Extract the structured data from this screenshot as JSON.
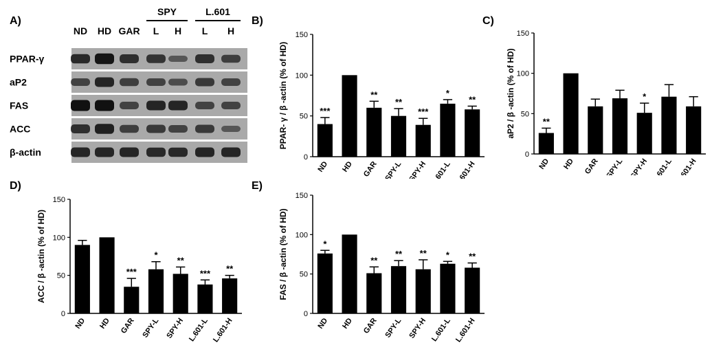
{
  "panels": {
    "A": "A)",
    "B": "B)",
    "C": "C)",
    "D": "D)",
    "E": "E)"
  },
  "blot": {
    "lane_labels": [
      "ND",
      "HD",
      "GAR",
      "L",
      "H",
      "L",
      "H"
    ],
    "group_labels": [
      "SPY",
      "L.601"
    ],
    "row_labels": [
      "PPAR-γ",
      "aP2",
      "FAS",
      "ACC",
      "β-actin"
    ],
    "colors": {
      "background": "#a9a9a9",
      "band": "#111111"
    },
    "band_intensity": [
      [
        0.75,
        0.95,
        0.7,
        0.65,
        0.3,
        0.7,
        0.55
      ],
      [
        0.5,
        0.8,
        0.55,
        0.5,
        0.4,
        0.6,
        0.5
      ],
      [
        1.0,
        1.0,
        0.5,
        0.8,
        0.8,
        0.5,
        0.5
      ],
      [
        0.7,
        0.85,
        0.55,
        0.6,
        0.5,
        0.6,
        0.3
      ],
      [
        0.8,
        0.8,
        0.8,
        0.75,
        0.75,
        0.8,
        0.8
      ]
    ]
  },
  "chart_data": [
    {
      "id": "B",
      "type": "bar",
      "ylabel": "PPAR- γ  /  β -actin (% of HD)",
      "categories": [
        "ND",
        "HD",
        "GAR",
        "SPY-L",
        "SPY-H",
        "601-L",
        "601-H"
      ],
      "values": [
        40,
        100,
        60,
        50,
        39,
        65,
        58
      ],
      "errors": [
        8,
        0,
        8,
        9,
        8,
        5,
        4
      ],
      "significance": [
        "***",
        "",
        "**",
        "**",
        "***",
        "*",
        "**"
      ],
      "ylim": [
        0,
        150
      ],
      "yticks": [
        0,
        50,
        100,
        150
      ]
    },
    {
      "id": "C",
      "type": "bar",
      "ylabel": "aP2 / β -actin (% of HD)",
      "categories": [
        "ND",
        "HD",
        "GAR",
        "SPY-L",
        "SPY-H",
        "L.601-L",
        "L.601-H"
      ],
      "values": [
        26,
        100,
        59,
        69,
        51,
        71,
        59
      ],
      "errors": [
        6,
        0,
        9,
        10,
        12,
        15,
        12
      ],
      "significance": [
        "**",
        "",
        "",
        "",
        "*",
        "",
        ""
      ],
      "ylim": [
        0,
        150
      ],
      "yticks": [
        0,
        50,
        100,
        150
      ]
    },
    {
      "id": "D",
      "type": "bar",
      "ylabel": "ACC / β -actin (% of HD)",
      "categories": [
        "ND",
        "HD",
        "GAR",
        "SPY-L",
        "SPY-H",
        "L.601-L",
        "L.601-H"
      ],
      "values": [
        90,
        100,
        35,
        58,
        52,
        38,
        46
      ],
      "errors": [
        6,
        0,
        11,
        10,
        9,
        6,
        4
      ],
      "significance": [
        "",
        "",
        "***",
        "*",
        "**",
        "***",
        "**"
      ],
      "ylim": [
        0,
        150
      ],
      "yticks": [
        0,
        50,
        100,
        150
      ]
    },
    {
      "id": "E",
      "type": "bar",
      "ylabel": "FAS / β -actin (% of HD)",
      "categories": [
        "ND",
        "HD",
        "GAR",
        "SPY-L",
        "SPY-H",
        "L.601-L",
        "L.601-H"
      ],
      "values": [
        76,
        100,
        51,
        60,
        56,
        63,
        58
      ],
      "errors": [
        4,
        0,
        8,
        7,
        12,
        3,
        6
      ],
      "significance": [
        "*",
        "",
        "**",
        "**",
        "**",
        "*",
        "**"
      ],
      "ylim": [
        0,
        150
      ],
      "yticks": [
        0,
        50,
        100,
        150
      ]
    }
  ],
  "style": {
    "bar_color": "#000000",
    "axis_color": "#000000"
  }
}
